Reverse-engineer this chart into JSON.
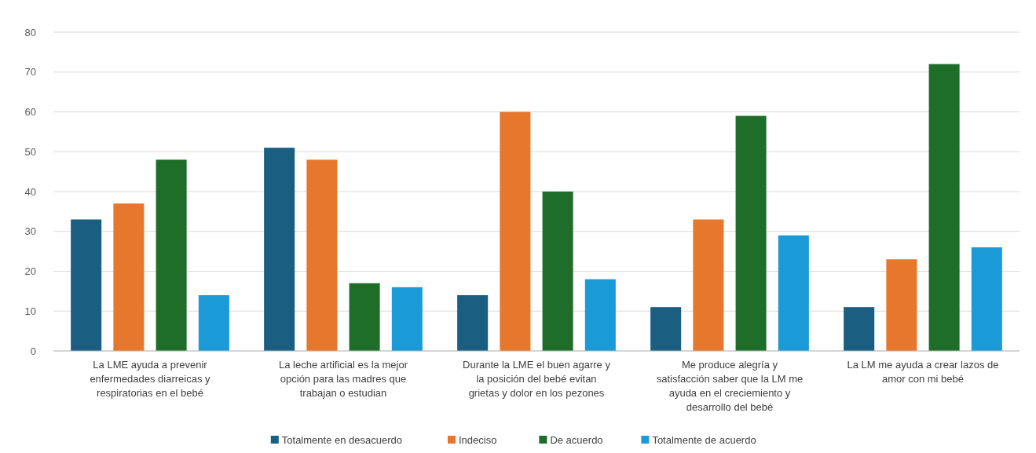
{
  "chart_data": {
    "type": "bar",
    "categories": [
      "La LME ayuda a prevenir enfermedades diarreicas y respiratorias en el bebé",
      "La leche artificial es la mejor opción para las madres que trabajan o estudian",
      "Durante la LME el buen agarre y la posición del bebé evitan grietas y dolor en los pezones",
      "Me produce alegría y satisfacción saber que la LM me ayuda en el creciemiento y desarrollo del bebé",
      "La LM me ayuda a crear lazos de amor con mi bebé"
    ],
    "series": [
      {
        "name": "Totalmente en desacuerdo",
        "color": "#1a5e82",
        "values": [
          33,
          51,
          14,
          11,
          11
        ]
      },
      {
        "name": "Indeciso",
        "color": "#e8772e",
        "values": [
          37,
          48,
          60,
          33,
          23
        ]
      },
      {
        "name": "De acuerdo",
        "color": "#1e6e2a",
        "values": [
          48,
          17,
          40,
          59,
          72
        ]
      },
      {
        "name": "Totalmente de acuerdo",
        "color": "#1a9bd7",
        "values": [
          14,
          16,
          18,
          29,
          26
        ]
      }
    ],
    "ylim": [
      0,
      80
    ],
    "yticks": [
      0,
      10,
      20,
      30,
      40,
      50,
      60,
      70,
      80
    ],
    "grid": "y",
    "legend": "bottom"
  }
}
